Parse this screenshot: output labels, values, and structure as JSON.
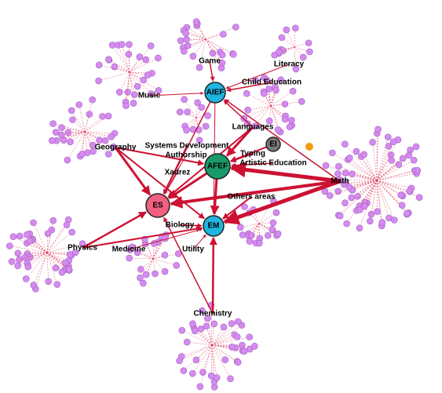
{
  "nodes": [
    {
      "label": "AIEF"
    },
    {
      "label": "AFEF"
    },
    {
      "label": "ES"
    },
    {
      "label": "EM"
    },
    {
      "label": "EI"
    },
    {
      "label": "Game"
    },
    {
      "label": "Literacy"
    },
    {
      "label": "Child Education"
    },
    {
      "label": "Music"
    },
    {
      "label": "Languages"
    },
    {
      "label": "Geography"
    },
    {
      "label": "Systems Development"
    },
    {
      "label": "Authorship"
    },
    {
      "label": "Typing"
    },
    {
      "label": "Artistic Education"
    },
    {
      "label": "Xadrez"
    },
    {
      "label": "Math"
    },
    {
      "label": "Others areas"
    },
    {
      "label": "Biology"
    },
    {
      "label": "Physics"
    },
    {
      "label": "Medicine"
    },
    {
      "label": "Utility"
    },
    {
      "label": "Chemistry"
    }
  ]
}
